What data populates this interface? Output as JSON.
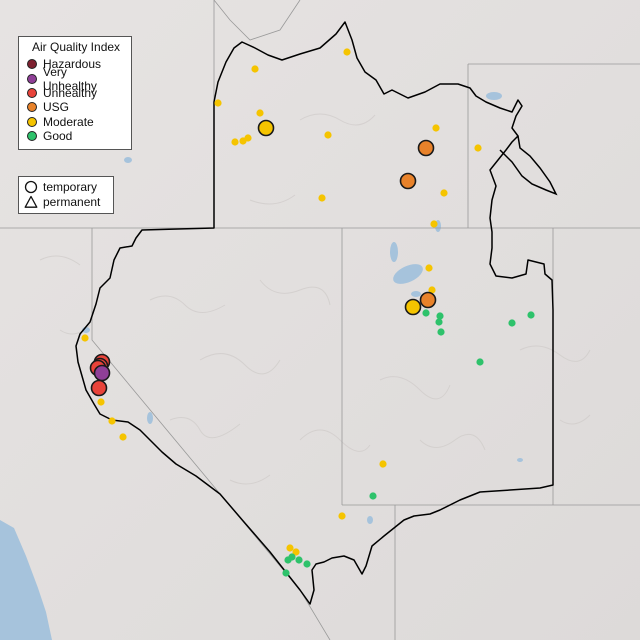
{
  "legend": {
    "title": "Air Quality Index",
    "categories": [
      {
        "label": "Hazardous",
        "color": "#7e2130"
      },
      {
        "label": "Very Unhealthy",
        "color": "#8f3f97"
      },
      {
        "label": "Unhealthy",
        "color": "#e8433a"
      },
      {
        "label": "USG",
        "color": "#e8822a"
      },
      {
        "label": "Moderate",
        "color": "#f5c400"
      },
      {
        "label": "Good",
        "color": "#2ec26b"
      }
    ],
    "shapes": [
      {
        "label": "temporary",
        "icon": "circle-icon"
      },
      {
        "label": "permanent",
        "icon": "triangle-icon"
      }
    ]
  },
  "map": {
    "background_color": "#e3e0df",
    "water_color": "#a6c3dc",
    "border_color": "#000000"
  }
}
